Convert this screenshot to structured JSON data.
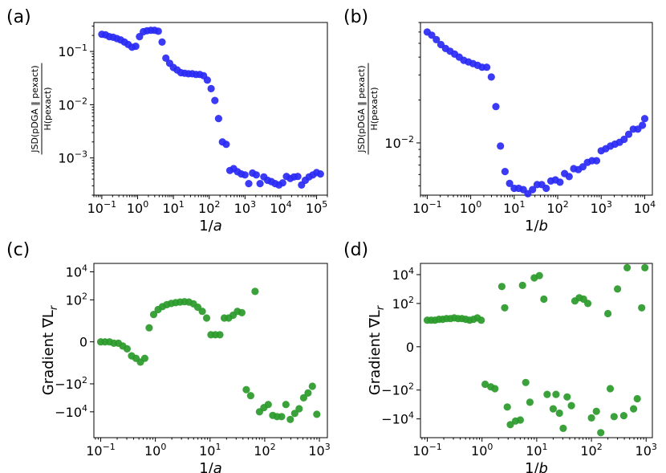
{
  "chart_data": [
    {
      "id": "a",
      "panel_label": "(a)",
      "type": "scatter",
      "color": "#2a2af5",
      "xscale": "log",
      "yscale": "log",
      "xlabel_base": "1/",
      "xlabel_var": "a",
      "ylabel_num": "JSD(pDGA ‖ pexact)",
      "ylabel_den": "H(pexact)",
      "xlim": [
        0.06,
        200000
      ],
      "ylim": [
        0.0002,
        0.35
      ],
      "xticks": [
        {
          "value": 0.1,
          "base": "10",
          "exp": "−1"
        },
        {
          "value": 1,
          "base": "10",
          "exp": "0"
        },
        {
          "value": 10,
          "base": "10",
          "exp": "1"
        },
        {
          "value": 100,
          "base": "10",
          "exp": "2"
        },
        {
          "value": 1000,
          "base": "10",
          "exp": "3"
        },
        {
          "value": 10000,
          "base": "10",
          "exp": "4"
        },
        {
          "value": 100000,
          "base": "10",
          "exp": "5"
        }
      ],
      "yticks": [
        {
          "value": 0.001,
          "base": "10",
          "exp": "−3"
        },
        {
          "value": 0.01,
          "base": "10",
          "exp": "−2"
        },
        {
          "value": 0.1,
          "base": "10",
          "exp": "−1"
        }
      ],
      "points": [
        [
          0.1,
          0.21
        ],
        [
          0.127,
          0.205
        ],
        [
          0.162,
          0.19
        ],
        [
          0.207,
          0.185
        ],
        [
          0.264,
          0.175
        ],
        [
          0.336,
          0.165
        ],
        [
          0.428,
          0.15
        ],
        [
          0.545,
          0.135
        ],
        [
          0.695,
          0.12
        ],
        [
          0.886,
          0.125
        ],
        [
          1.13,
          0.19
        ],
        [
          1.44,
          0.235
        ],
        [
          1.83,
          0.245
        ],
        [
          2.34,
          0.25
        ],
        [
          2.98,
          0.25
        ],
        [
          3.79,
          0.24
        ],
        [
          4.83,
          0.15
        ],
        [
          6.16,
          0.075
        ],
        [
          7.85,
          0.06
        ],
        [
          10.0,
          0.05
        ],
        [
          12.7,
          0.045
        ],
        [
          16.2,
          0.04
        ],
        [
          20.7,
          0.039
        ],
        [
          26.4,
          0.038
        ],
        [
          33.6,
          0.038
        ],
        [
          42.8,
          0.037
        ],
        [
          54.5,
          0.037
        ],
        [
          69.5,
          0.035
        ],
        [
          88.6,
          0.029
        ],
        [
          113,
          0.02
        ],
        [
          144,
          0.012
        ],
        [
          183,
          0.0055
        ],
        [
          234,
          0.002
        ],
        [
          298,
          0.0018
        ],
        [
          379,
          0.00058
        ],
        [
          483,
          0.00063
        ],
        [
          616,
          0.00055
        ],
        [
          785,
          0.0005
        ],
        [
          1000,
          0.00048
        ],
        [
          1274,
          0.00033
        ],
        [
          1624,
          0.00052
        ],
        [
          2069,
          0.00048
        ],
        [
          2637,
          0.00033
        ],
        [
          3360,
          0.00044
        ],
        [
          4281,
          0.00038
        ],
        [
          5456,
          0.00036
        ],
        [
          6952,
          0.00033
        ],
        [
          8859,
          0.00031
        ],
        [
          11288,
          0.00034
        ],
        [
          14384,
          0.00045
        ],
        [
          18330,
          0.00041
        ],
        [
          23357,
          0.00044
        ],
        [
          29764,
          0.00045
        ],
        [
          37927,
          0.00031
        ],
        [
          48329,
          0.00038
        ],
        [
          61585,
          0.00044
        ],
        [
          78476,
          0.00048
        ],
        [
          100000,
          0.00053
        ],
        [
          127427,
          0.0005
        ]
      ]
    },
    {
      "id": "b",
      "panel_label": "(b)",
      "type": "scatter",
      "color": "#2a2af5",
      "xscale": "log",
      "yscale": "log",
      "xlabel_base": "1/",
      "xlabel_var": "b",
      "ylabel_num": "JSD(pDGA ‖ pexact)",
      "ylabel_den": "H(pexact)",
      "xlim": [
        0.07,
        15000
      ],
      "ylim": [
        0.0043,
        0.07
      ],
      "xticks": [
        {
          "value": 0.1,
          "base": "10",
          "exp": "−1"
        },
        {
          "value": 1,
          "base": "10",
          "exp": "0"
        },
        {
          "value": 10,
          "base": "10",
          "exp": "1"
        },
        {
          "value": 100,
          "base": "10",
          "exp": "2"
        },
        {
          "value": 1000,
          "base": "10",
          "exp": "3"
        },
        {
          "value": 10000,
          "base": "10",
          "exp": "4"
        }
      ],
      "yticks": [
        {
          "value": 0.01,
          "base": "10",
          "exp": "−2"
        }
      ],
      "points": [
        [
          0.1,
          0.06
        ],
        [
          0.127,
          0.057
        ],
        [
          0.162,
          0.053
        ],
        [
          0.207,
          0.049
        ],
        [
          0.264,
          0.046
        ],
        [
          0.336,
          0.044
        ],
        [
          0.428,
          0.042
        ],
        [
          0.545,
          0.04
        ],
        [
          0.695,
          0.038
        ],
        [
          0.886,
          0.037
        ],
        [
          1.13,
          0.036
        ],
        [
          1.44,
          0.035
        ],
        [
          1.83,
          0.034
        ],
        [
          2.34,
          0.034
        ],
        [
          2.98,
          0.029
        ],
        [
          3.79,
          0.018
        ],
        [
          4.83,
          0.0095
        ],
        [
          6.16,
          0.0063
        ],
        [
          7.85,
          0.0052
        ],
        [
          10.0,
          0.0048
        ],
        [
          12.7,
          0.0048
        ],
        [
          16.2,
          0.0047
        ],
        [
          20.7,
          0.0044
        ],
        [
          26.4,
          0.0047
        ],
        [
          33.6,
          0.0051
        ],
        [
          42.8,
          0.0051
        ],
        [
          54.5,
          0.0048
        ],
        [
          69.5,
          0.0054
        ],
        [
          88.6,
          0.0055
        ],
        [
          113,
          0.0053
        ],
        [
          144,
          0.0061
        ],
        [
          183,
          0.0058
        ],
        [
          234,
          0.0066
        ],
        [
          298,
          0.0065
        ],
        [
          379,
          0.0068
        ],
        [
          483,
          0.0073
        ],
        [
          616,
          0.0075
        ],
        [
          785,
          0.0075
        ],
        [
          1000,
          0.0088
        ],
        [
          1274,
          0.0091
        ],
        [
          1624,
          0.0095
        ],
        [
          2069,
          0.0098
        ],
        [
          2637,
          0.0101
        ],
        [
          3360,
          0.0106
        ],
        [
          4281,
          0.0115
        ],
        [
          5456,
          0.0125
        ],
        [
          6952,
          0.0125
        ],
        [
          8859,
          0.0133
        ],
        [
          10000,
          0.0148
        ]
      ]
    },
    {
      "id": "c",
      "panel_label": "(c)",
      "type": "scatter",
      "color": "#2a9a2a",
      "xscale": "log",
      "yscale": "symlog",
      "xlabel_base": "1/",
      "xlabel_var": "a",
      "ylabel": "Gradient ∇L",
      "ylabel_sub": "r",
      "xlim": [
        0.075,
        1400
      ],
      "ylim": [
        -700000,
        40000
      ],
      "xticks": [
        {
          "value": 0.1,
          "base": "10",
          "exp": "−1"
        },
        {
          "value": 1,
          "base": "10",
          "exp": "0"
        },
        {
          "value": 10,
          "base": "10",
          "exp": "1"
        },
        {
          "value": 100,
          "base": "10",
          "exp": "2"
        },
        {
          "value": 1000,
          "base": "10",
          "exp": "3"
        }
      ],
      "yticks": [
        {
          "value": 10000,
          "label": "10",
          "exp": "4"
        },
        {
          "value": 100,
          "label": "10",
          "exp": "2"
        },
        {
          "value": 0,
          "label": "0",
          "exp": ""
        },
        {
          "value": -100,
          "label": "−10",
          "exp": "2"
        },
        {
          "value": -10000,
          "label": "−10",
          "exp": "4"
        }
      ],
      "points": [
        [
          0.1,
          0
        ],
        [
          0.12,
          0
        ],
        [
          0.145,
          0
        ],
        [
          0.174,
          -0.1
        ],
        [
          0.21,
          -0.1
        ],
        [
          0.253,
          -0.3
        ],
        [
          0.304,
          -0.5
        ],
        [
          0.367,
          -1
        ],
        [
          0.442,
          -1.5
        ],
        [
          0.532,
          -2.8
        ],
        [
          0.64,
          -1.5
        ],
        [
          0.77,
          1
        ],
        [
          0.93,
          9
        ],
        [
          1.12,
          20
        ],
        [
          1.35,
          33
        ],
        [
          1.62,
          45
        ],
        [
          1.95,
          55
        ],
        [
          2.35,
          63
        ],
        [
          2.83,
          70
        ],
        [
          3.4,
          73
        ],
        [
          4.1,
          70
        ],
        [
          4.95,
          52
        ],
        [
          5.95,
          30
        ],
        [
          7.2,
          15
        ],
        [
          8.65,
          5
        ],
        [
          10.4,
          0.5
        ],
        [
          12.5,
          0.5
        ],
        [
          15.1,
          0.5
        ],
        [
          18.2,
          5
        ],
        [
          21.9,
          5
        ],
        [
          26.4,
          8
        ],
        [
          31.7,
          15
        ],
        [
          38.2,
          12
        ],
        [
          46,
          -260
        ],
        [
          55.4,
          -700
        ],
        [
          66.7,
          400
        ],
        [
          80.3,
          -10000
        ],
        [
          96.7,
          -5000
        ],
        [
          116,
          -3000
        ],
        [
          140,
          -18000
        ],
        [
          168,
          -22000
        ],
        [
          203,
          -22000
        ],
        [
          244,
          -3000
        ],
        [
          294,
          -35000
        ],
        [
          354,
          -13000
        ],
        [
          426,
          -6000
        ],
        [
          514,
          -1000
        ],
        [
          619,
          -450
        ],
        [
          745,
          -150
        ],
        [
          897,
          -15000
        ]
      ]
    },
    {
      "id": "d",
      "panel_label": "(d)",
      "type": "scatter",
      "color": "#2a9a2a",
      "xscale": "log",
      "yscale": "symlog",
      "xlabel_base": "1/",
      "xlabel_var": "b",
      "ylabel": "Gradient ∇L",
      "ylabel_sub": "r",
      "xlim": [
        0.075,
        1300
      ],
      "ylim": [
        -200000,
        60000
      ],
      "xticks": [
        {
          "value": 0.1,
          "base": "10",
          "exp": "−1"
        },
        {
          "value": 1,
          "base": "10",
          "exp": "0"
        },
        {
          "value": 10,
          "base": "10",
          "exp": "1"
        },
        {
          "value": 100,
          "base": "10",
          "exp": "2"
        },
        {
          "value": 1000,
          "base": "10",
          "exp": "3"
        }
      ],
      "yticks": [
        {
          "value": 10000,
          "label": "10",
          "exp": "4"
        },
        {
          "value": 100,
          "label": "10",
          "exp": "2"
        },
        {
          "value": 0,
          "label": "0",
          "exp": ""
        },
        {
          "value": -100,
          "label": "−10",
          "exp": "2"
        },
        {
          "value": -10000,
          "label": "−10",
          "exp": "4"
        }
      ],
      "points": [
        [
          0.1,
          7
        ],
        [
          0.118,
          7
        ],
        [
          0.138,
          7
        ],
        [
          0.163,
          8
        ],
        [
          0.191,
          8
        ],
        [
          0.225,
          9
        ],
        [
          0.265,
          9
        ],
        [
          0.311,
          10
        ],
        [
          0.366,
          9
        ],
        [
          0.43,
          9
        ],
        [
          0.506,
          8
        ],
        [
          0.595,
          7
        ],
        [
          0.7,
          8
        ],
        [
          0.823,
          10
        ],
        [
          0.968,
          7
        ],
        [
          1.14,
          -40
        ],
        [
          1.45,
          -60
        ],
        [
          1.72,
          -80
        ],
        [
          2.3,
          1500
        ],
        [
          2.6,
          50
        ],
        [
          2.9,
          -1500
        ],
        [
          3.3,
          -25000
        ],
        [
          4.1,
          -14000
        ],
        [
          5.0,
          -12000
        ],
        [
          5.5,
          1800
        ],
        [
          6.3,
          -30
        ],
        [
          7.5,
          -700
        ],
        [
          9.0,
          6000
        ],
        [
          11.2,
          8500
        ],
        [
          13.5,
          200
        ],
        [
          15.5,
          -200
        ],
        [
          20.0,
          -2000
        ],
        [
          22.5,
          -200
        ],
        [
          26,
          -4000
        ],
        [
          30.5,
          -45000
        ],
        [
          36,
          -300
        ],
        [
          43,
          -1200
        ],
        [
          50,
          150
        ],
        [
          60,
          250
        ],
        [
          72,
          200
        ],
        [
          86,
          100
        ],
        [
          100,
          -8500
        ],
        [
          123,
          -3000
        ],
        [
          148,
          -90000
        ],
        [
          200,
          20
        ],
        [
          221,
          -80
        ],
        [
          260,
          -7000
        ],
        [
          300,
          1000
        ],
        [
          390,
          -6000
        ],
        [
          450,
          30000
        ],
        [
          590,
          -2000
        ],
        [
          690,
          -400
        ],
        [
          830,
          50
        ],
        [
          950,
          30000
        ]
      ]
    }
  ]
}
